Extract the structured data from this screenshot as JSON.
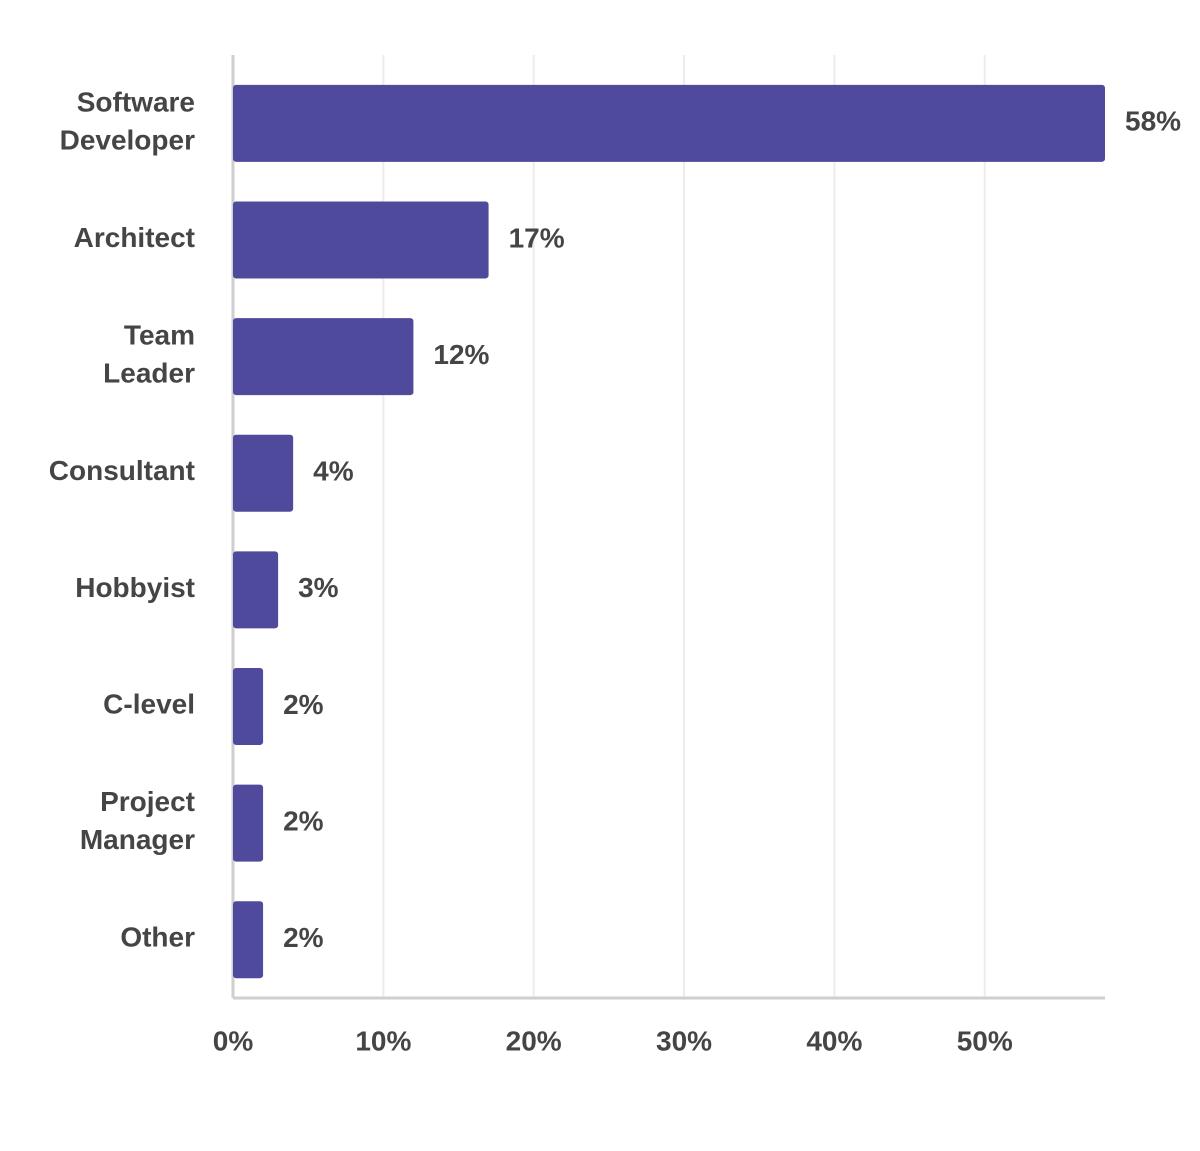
{
  "chart_data": {
    "type": "bar",
    "orientation": "horizontal",
    "categories": [
      "Software Developer",
      "Architect",
      "Team Leader",
      "Consultant",
      "Hobbyist",
      "C-level",
      "Project Manager",
      "Other"
    ],
    "values": [
      58,
      17,
      12,
      4,
      3,
      2,
      2,
      2
    ],
    "value_labels": [
      "58%",
      "17%",
      "12%",
      "4%",
      "3%",
      "2%",
      "2%",
      "2%"
    ],
    "color": "#4f4a9c",
    "xlim": [
      0,
      58
    ],
    "xticks": [
      {
        "value": 0,
        "label": "0%"
      },
      {
        "value": 10,
        "label": "10%"
      },
      {
        "value": 20,
        "label": "20%"
      },
      {
        "value": 30,
        "label": "30%"
      },
      {
        "value": 40,
        "label": "40%"
      },
      {
        "value": 50,
        "label": "50%"
      }
    ],
    "grid": true
  }
}
